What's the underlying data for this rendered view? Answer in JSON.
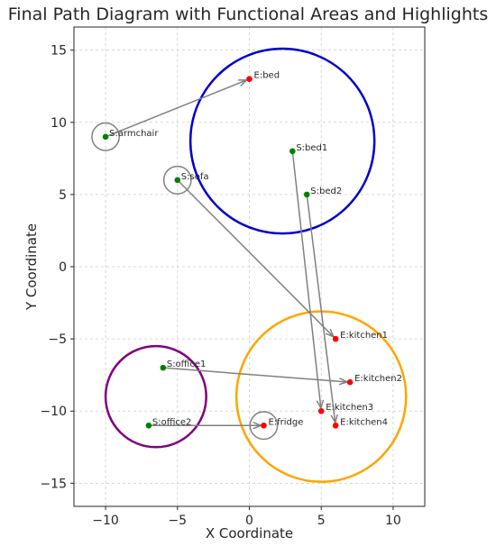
{
  "chart_data": {
    "type": "scatter",
    "title": "Final Path Diagram with Functional Areas and Highlights",
    "xlabel": "X Coordinate",
    "ylabel": "Y Coordinate",
    "xlim": [
      -12.2,
      12.2
    ],
    "ylim": [
      -16.6,
      16.6
    ],
    "xticks": [
      -10,
      -5,
      0,
      5,
      10
    ],
    "yticks": [
      -15,
      -10,
      -5,
      0,
      5,
      10,
      15
    ],
    "x_tick_labels": [
      "−10",
      "−5",
      "0",
      "5",
      "10"
    ],
    "y_tick_labels": [
      "−15",
      "−10",
      "−5",
      "0",
      "5",
      "10",
      "15"
    ],
    "grid": true,
    "colors": {
      "start": "#008000",
      "end": "#ff0000",
      "arrow": "#808080",
      "highlight": "#808080",
      "area_bedroom": "#0000cd",
      "area_kitchen": "#ffa500",
      "area_office": "#800080"
    },
    "areas": [
      {
        "cx": 2.3,
        "cy": 8.7,
        "r": 6.4,
        "color": "#0000cd"
      },
      {
        "cx": 5.0,
        "cy": -9.0,
        "r": 5.9,
        "color": "#ffa500"
      },
      {
        "cx": -6.5,
        "cy": -9.0,
        "r": 3.5,
        "color": "#800080"
      }
    ],
    "highlights": [
      {
        "cx": -10,
        "cy": 9,
        "r": 0.95
      },
      {
        "cx": -5,
        "cy": 6,
        "r": 0.95
      },
      {
        "cx": 1,
        "cy": -11,
        "r": 0.95
      }
    ],
    "start_points": [
      {
        "label": "S:armchair",
        "x": -10,
        "y": 9
      },
      {
        "label": "S:sofa",
        "x": -5,
        "y": 6
      },
      {
        "label": "S:bed1",
        "x": 3,
        "y": 8
      },
      {
        "label": "S:bed2",
        "x": 4,
        "y": 5
      },
      {
        "label": "S:office1",
        "x": -6,
        "y": -7
      },
      {
        "label": "S:office2",
        "x": -7,
        "y": -11
      }
    ],
    "end_points": [
      {
        "label": "E:bed",
        "x": 0,
        "y": 13
      },
      {
        "label": "E:kitchen1",
        "x": 6,
        "y": -5
      },
      {
        "label": "E:kitchen2",
        "x": 7,
        "y": -8
      },
      {
        "label": "E:kitchen3",
        "x": 5,
        "y": -10
      },
      {
        "label": "E:kitchen4",
        "x": 6,
        "y": -11
      },
      {
        "label": "E:fridge",
        "x": 1,
        "y": -11
      }
    ],
    "paths": [
      {
        "from": [
          -10,
          9
        ],
        "to": [
          0,
          13
        ]
      },
      {
        "from": [
          -5,
          6
        ],
        "to": [
          6,
          -5
        ]
      },
      {
        "from": [
          3,
          8
        ],
        "to": [
          5,
          -10
        ]
      },
      {
        "from": [
          4,
          5
        ],
        "to": [
          6,
          -11
        ]
      },
      {
        "from": [
          -6,
          -7
        ],
        "to": [
          7,
          -8
        ]
      },
      {
        "from": [
          -7,
          -11
        ],
        "to": [
          1,
          -11
        ]
      }
    ]
  }
}
